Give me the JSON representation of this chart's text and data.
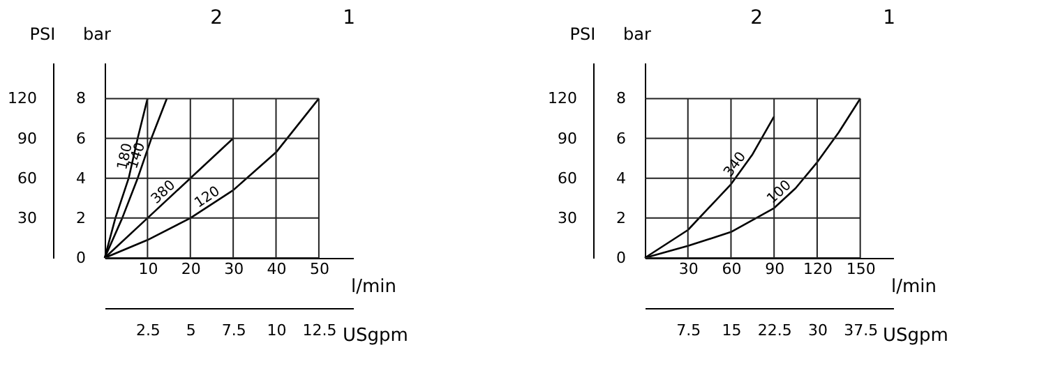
{
  "chart_data": [
    {
      "type": "line",
      "xlabel": "l/min",
      "x2label": "USgpm",
      "ylabel": "bar",
      "y2label": "PSI",
      "annotations": [
        "2",
        "1"
      ],
      "xlim": [
        0,
        58
      ],
      "xticks": [
        10,
        20,
        30,
        40,
        50
      ],
      "x2lim": [
        0,
        14.5
      ],
      "x2ticks": [
        2.5,
        5,
        7.5,
        10,
        12.5
      ],
      "ylim": [
        0,
        9.8
      ],
      "yticks": [
        0,
        2,
        4,
        6,
        8
      ],
      "y2lim": [
        0,
        147
      ],
      "y2ticks": [
        30,
        60,
        90,
        120
      ],
      "grid": true,
      "marker": "none",
      "line_style": "solid",
      "series": [
        {
          "name": "180",
          "color": "#000000",
          "x": [
            0,
            2.5,
            5.6,
            7.7,
            10
          ],
          "values": [
            0,
            2,
            4,
            6,
            8
          ]
        },
        {
          "name": "140",
          "color": "#000000",
          "x": [
            0,
            4.1,
            7.7,
            10.9,
            14.5
          ],
          "values": [
            0,
            2,
            4,
            6,
            8
          ]
        },
        {
          "name": "380",
          "color": "#000000",
          "x": [
            0,
            10,
            20,
            30
          ],
          "values": [
            0,
            2,
            4,
            6
          ]
        },
        {
          "name": "120",
          "color": "#000000",
          "x": [
            0,
            10,
            20,
            30,
            40,
            50
          ],
          "values": [
            0,
            0.9,
            2,
            3.4,
            5.3,
            8
          ]
        }
      ]
    },
    {
      "type": "line",
      "xlabel": "l/min",
      "x2label": "USgpm",
      "ylabel": "bar",
      "y2label": "PSI",
      "annotations": [
        "2",
        "1"
      ],
      "xlim": [
        0,
        173
      ],
      "xticks": [
        30,
        60,
        90,
        120,
        150
      ],
      "x2lim": [
        0,
        43.25
      ],
      "x2ticks": [
        7.5,
        15,
        22.5,
        30,
        37.5
      ],
      "ylim": [
        0,
        9.8
      ],
      "yticks": [
        0,
        2,
        4,
        6,
        8
      ],
      "y2lim": [
        0,
        147
      ],
      "y2ticks": [
        30,
        60,
        90,
        120
      ],
      "grid": true,
      "marker": "none",
      "line_style": "solid",
      "series": [
        {
          "name": "340",
          "color": "#000000",
          "x": [
            0,
            30,
            60,
            75,
            90
          ],
          "values": [
            0,
            1.4,
            3.7,
            5.2,
            7.1
          ]
        },
        {
          "name": "100",
          "color": "#000000",
          "x": [
            0,
            30,
            60,
            90,
            105,
            120,
            135,
            150
          ],
          "values": [
            0,
            0.6,
            1.3,
            2.5,
            3.5,
            4.8,
            6.3,
            8
          ]
        }
      ]
    }
  ]
}
